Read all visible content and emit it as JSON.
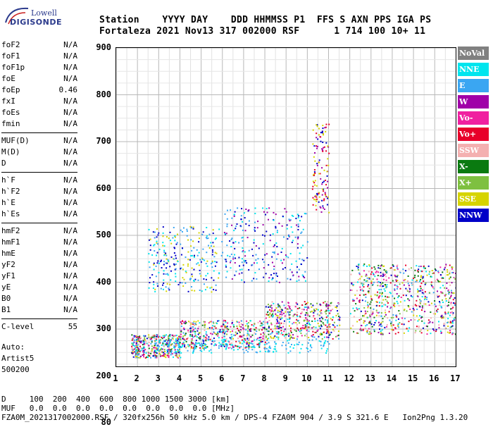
{
  "logo": {
    "brand_top": "Lowell",
    "brand_bottom": "DIGISONDE"
  },
  "header": {
    "line1": "Station    YYYY DAY    DDD HHMMSS P1  FFS S AXN PPS IGA PS",
    "line2": "Fortaleza 2021 Nov13 317 002000 RSF      1 714 100 10+ 11"
  },
  "params": {
    "group1": [
      {
        "label": "foF2",
        "value": "N/A"
      },
      {
        "label": "foF1",
        "value": "N/A"
      },
      {
        "label": "foF1p",
        "value": "N/A"
      },
      {
        "label": "foE",
        "value": "N/A"
      },
      {
        "label": "foEp",
        "value": "0.46"
      },
      {
        "label": "fxI",
        "value": "N/A"
      },
      {
        "label": "foEs",
        "value": "N/A"
      },
      {
        "label": "fmin",
        "value": "N/A"
      }
    ],
    "group2": [
      {
        "label": "MUF(D)",
        "value": "N/A"
      },
      {
        "label": "M(D)",
        "value": "N/A"
      },
      {
        "label": "D",
        "value": "N/A"
      }
    ],
    "group3": [
      {
        "label": "h`F",
        "value": "N/A"
      },
      {
        "label": "h`F2",
        "value": "N/A"
      },
      {
        "label": "h`E",
        "value": "N/A"
      },
      {
        "label": "h`Es",
        "value": "N/A"
      }
    ],
    "group4": [
      {
        "label": "hmF2",
        "value": "N/A"
      },
      {
        "label": "hmF1",
        "value": "N/A"
      },
      {
        "label": "hmE",
        "value": "N/A"
      },
      {
        "label": "yF2",
        "value": "N/A"
      },
      {
        "label": "yF1",
        "value": "N/A"
      },
      {
        "label": "yE",
        "value": "N/A"
      },
      {
        "label": "B0",
        "value": "N/A"
      },
      {
        "label": "B1",
        "value": "N/A"
      }
    ],
    "group5": [
      {
        "label": "C-level",
        "value": "55"
      }
    ]
  },
  "autoscale": {
    "line1": "Auto:",
    "line2": "Artist5",
    "line3": "500200"
  },
  "axes": {
    "y_ticks": [
      "900",
      "800",
      "700",
      "600",
      "500",
      "400",
      "300",
      "200",
      "80"
    ],
    "x_ticks": [
      "1",
      "2",
      "3",
      "4",
      "5",
      "6",
      "7",
      "8",
      "9",
      "10",
      "11",
      "12",
      "13",
      "14",
      "15",
      "16",
      "17"
    ]
  },
  "legend": [
    {
      "label": "NoVal",
      "color": "#808080"
    },
    {
      "label": "NNE",
      "color": "#00e5ee"
    },
    {
      "label": "E",
      "color": "#3aa6f2"
    },
    {
      "label": "W",
      "color": "#a000a8"
    },
    {
      "label": "Vo-",
      "color": "#f020a0"
    },
    {
      "label": "Vo+",
      "color": "#e8002a"
    },
    {
      "label": "SSW",
      "color": "#f4b0b0"
    },
    {
      "label": "X-",
      "color": "#0a7a10"
    },
    {
      "label": "X+",
      "color": "#7ec040"
    },
    {
      "label": "SSE",
      "color": "#d6d400"
    },
    {
      "label": "NNW",
      "color": "#0000c8"
    }
  ],
  "footer": {
    "d_line": "D     100  200  400  600  800 1000 1500 3000 [km]",
    "muf_line": "MUF   0.0  0.0  0.0  0.0  0.0  0.0  0.0  0.0 [MHz]",
    "info_line": "FZA0M_2021317002000.RSF / 320fx256h 50 kHz 5.0 km / DPS-4 FZA0M 904 / 3.9 S 321.6 E   Ion2Png 1.3.20"
  }
}
